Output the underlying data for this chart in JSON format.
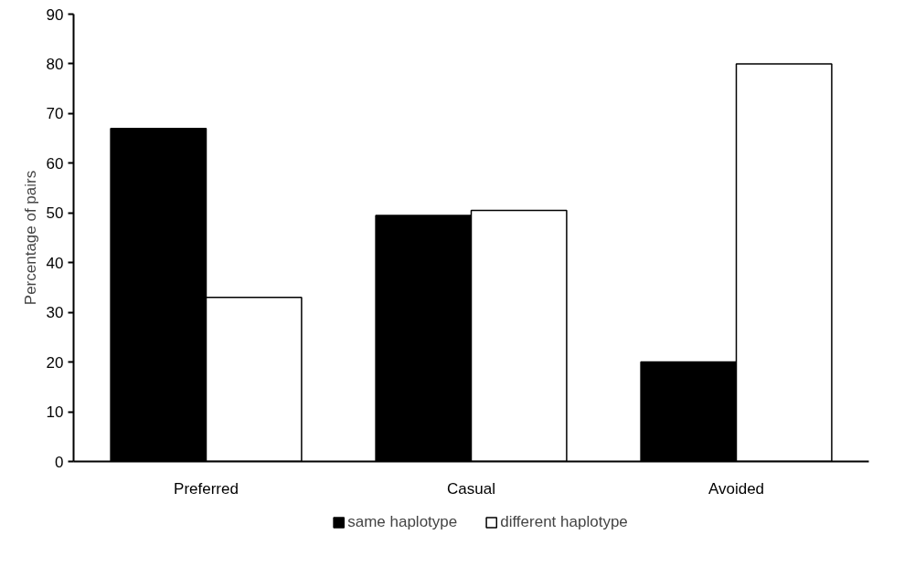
{
  "chart_data": {
    "type": "bar",
    "ylabel": "Percentage of pairs",
    "categories": [
      "Preferred",
      "Casual",
      "Avoided"
    ],
    "series": [
      {
        "name": "same haplotype",
        "color": "#000000",
        "values": [
          67,
          49.5,
          20
        ]
      },
      {
        "name": "different haplotype",
        "color": "#ffffff",
        "values": [
          33,
          50.5,
          80
        ]
      }
    ],
    "ylim": [
      0,
      90
    ],
    "yticks": [
      0,
      10,
      20,
      30,
      40,
      50,
      60,
      70,
      80,
      90
    ],
    "grid": false,
    "legend": "bottom"
  }
}
